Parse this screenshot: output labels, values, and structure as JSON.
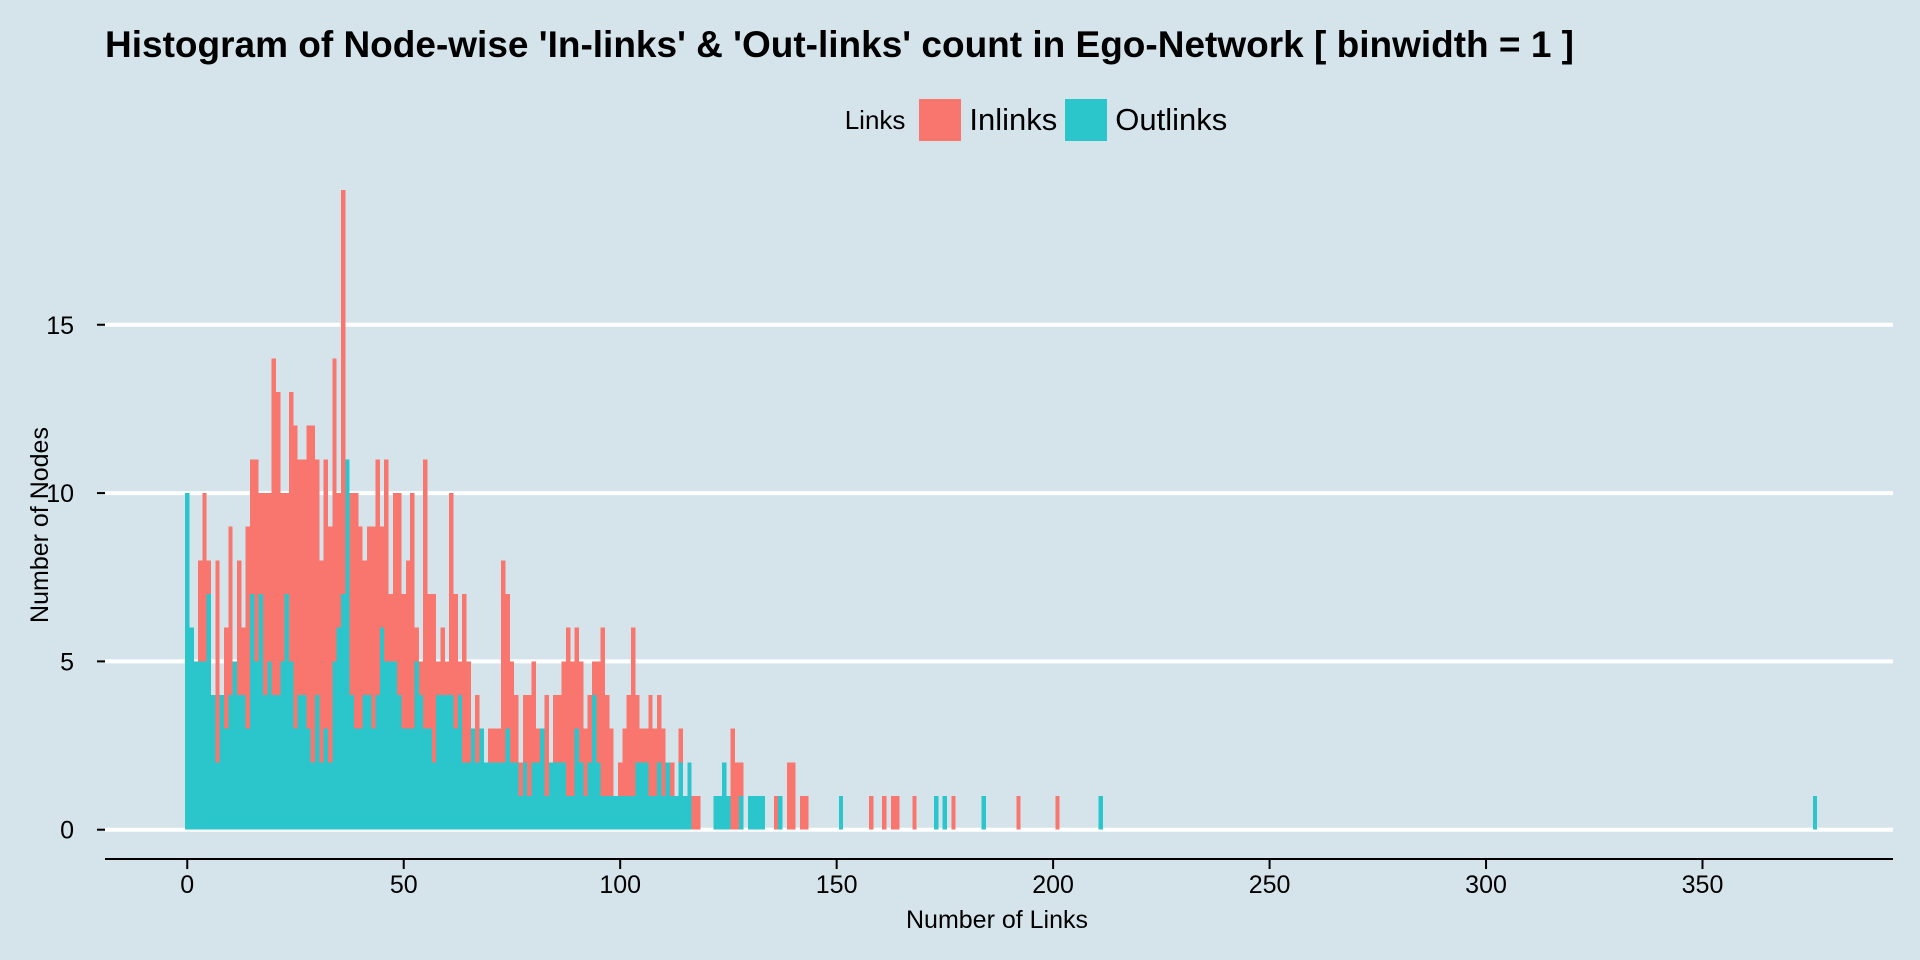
{
  "chart_data": {
    "type": "bar",
    "title": "Histogram of Node-wise 'In-links' & 'Out-links' count in Ego-Network [ binwidth = 1 ]",
    "xlabel": "Number of Links",
    "ylabel": "Number of Nodes",
    "xlim": [
      -19,
      394
    ],
    "ylim": [
      -0.9,
      19.3
    ],
    "x_ticks": [
      0,
      50,
      100,
      150,
      200,
      250,
      300,
      350
    ],
    "y_ticks": [
      0,
      5,
      10,
      15
    ],
    "grid": "horizontal",
    "legend": {
      "title": "Links",
      "placement": "top-center"
    },
    "binwidth": 1,
    "series": [
      {
        "name": "Inlinks",
        "color": "#f8766d",
        "points": [
          [
            3,
            8
          ],
          [
            4,
            10
          ],
          [
            5,
            8
          ],
          [
            7,
            8
          ],
          [
            9,
            6
          ],
          [
            10,
            9
          ],
          [
            12,
            8
          ],
          [
            13,
            6
          ],
          [
            14,
            9
          ],
          [
            15,
            11
          ],
          [
            16,
            11
          ],
          [
            17,
            10
          ],
          [
            18,
            10
          ],
          [
            19,
            10
          ],
          [
            20,
            14
          ],
          [
            21,
            13
          ],
          [
            22,
            10
          ],
          [
            23,
            10
          ],
          [
            24,
            13
          ],
          [
            25,
            12
          ],
          [
            26,
            11
          ],
          [
            27,
            11
          ],
          [
            28,
            12
          ],
          [
            29,
            12
          ],
          [
            30,
            11
          ],
          [
            31,
            8
          ],
          [
            32,
            11
          ],
          [
            33,
            9
          ],
          [
            34,
            14
          ],
          [
            35,
            10
          ],
          [
            36,
            19
          ],
          [
            37,
            11
          ],
          [
            38,
            10
          ],
          [
            39,
            10
          ],
          [
            40,
            9
          ],
          [
            41,
            8
          ],
          [
            42,
            9
          ],
          [
            43,
            9
          ],
          [
            44,
            11
          ],
          [
            45,
            9
          ],
          [
            46,
            11
          ],
          [
            47,
            7
          ],
          [
            48,
            10
          ],
          [
            49,
            10
          ],
          [
            50,
            7
          ],
          [
            51,
            8
          ],
          [
            52,
            10
          ],
          [
            53,
            6
          ],
          [
            54,
            5
          ],
          [
            55,
            11
          ],
          [
            56,
            7
          ],
          [
            57,
            7
          ],
          [
            58,
            5
          ],
          [
            59,
            6
          ],
          [
            60,
            5
          ],
          [
            61,
            10
          ],
          [
            62,
            7
          ],
          [
            63,
            5
          ],
          [
            64,
            7
          ],
          [
            65,
            5
          ],
          [
            67,
            4
          ],
          [
            68,
            2
          ],
          [
            70,
            3
          ],
          [
            71,
            3
          ],
          [
            72,
            3
          ],
          [
            73,
            8
          ],
          [
            74,
            7
          ],
          [
            75,
            5
          ],
          [
            76,
            4
          ],
          [
            77,
            2
          ],
          [
            78,
            4
          ],
          [
            79,
            4
          ],
          [
            80,
            5
          ],
          [
            81,
            3
          ],
          [
            82,
            2
          ],
          [
            83,
            4
          ],
          [
            84,
            2
          ],
          [
            85,
            4
          ],
          [
            86,
            4
          ],
          [
            87,
            5
          ],
          [
            88,
            6
          ],
          [
            89,
            5
          ],
          [
            90,
            6
          ],
          [
            91,
            5
          ],
          [
            92,
            3
          ],
          [
            93,
            4
          ],
          [
            94,
            5
          ],
          [
            95,
            5
          ],
          [
            96,
            6
          ],
          [
            97,
            4
          ],
          [
            98,
            3
          ],
          [
            100,
            2
          ],
          [
            101,
            3
          ],
          [
            102,
            4
          ],
          [
            103,
            6
          ],
          [
            104,
            4
          ],
          [
            105,
            3
          ],
          [
            106,
            3
          ],
          [
            107,
            4
          ],
          [
            108,
            3
          ],
          [
            109,
            4
          ],
          [
            110,
            3
          ],
          [
            111,
            2
          ],
          [
            112,
            2
          ],
          [
            114,
            3
          ],
          [
            115,
            1
          ],
          [
            116,
            1
          ],
          [
            117,
            1
          ],
          [
            118,
            1
          ],
          [
            122,
            1
          ],
          [
            124,
            1
          ],
          [
            126,
            3
          ],
          [
            127,
            2
          ],
          [
            128,
            2
          ],
          [
            136,
            1
          ],
          [
            139,
            2
          ],
          [
            140,
            2
          ],
          [
            142,
            1
          ],
          [
            143,
            1
          ],
          [
            158,
            1
          ],
          [
            161,
            1
          ],
          [
            163,
            1
          ],
          [
            164,
            1
          ],
          [
            168,
            1
          ],
          [
            177,
            1
          ],
          [
            192,
            1
          ],
          [
            201,
            1
          ]
        ]
      },
      {
        "name": "Outlinks",
        "color": "#2bc6cb",
        "points": [
          [
            0,
            10
          ],
          [
            1,
            6
          ],
          [
            2,
            5
          ],
          [
            3,
            5
          ],
          [
            4,
            5
          ],
          [
            5,
            7
          ],
          [
            6,
            4
          ],
          [
            7,
            2
          ],
          [
            8,
            4
          ],
          [
            9,
            3
          ],
          [
            10,
            4
          ],
          [
            11,
            5
          ],
          [
            12,
            4
          ],
          [
            13,
            4
          ],
          [
            14,
            3
          ],
          [
            15,
            7
          ],
          [
            16,
            5
          ],
          [
            17,
            7
          ],
          [
            18,
            4
          ],
          [
            19,
            5
          ],
          [
            20,
            4
          ],
          [
            21,
            4
          ],
          [
            22,
            5
          ],
          [
            23,
            7
          ],
          [
            24,
            5
          ],
          [
            25,
            3
          ],
          [
            26,
            4
          ],
          [
            27,
            4
          ],
          [
            28,
            3
          ],
          [
            29,
            2
          ],
          [
            30,
            4
          ],
          [
            31,
            2
          ],
          [
            32,
            3
          ],
          [
            33,
            2
          ],
          [
            34,
            5
          ],
          [
            35,
            6
          ],
          [
            36,
            7
          ],
          [
            37,
            11
          ],
          [
            38,
            4
          ],
          [
            39,
            3
          ],
          [
            40,
            3
          ],
          [
            41,
            4
          ],
          [
            42,
            4
          ],
          [
            43,
            3
          ],
          [
            44,
            4
          ],
          [
            45,
            6
          ],
          [
            46,
            5
          ],
          [
            47,
            5
          ],
          [
            48,
            5
          ],
          [
            49,
            4
          ],
          [
            50,
            3
          ],
          [
            51,
            3
          ],
          [
            52,
            3
          ],
          [
            53,
            5
          ],
          [
            54,
            4
          ],
          [
            55,
            3
          ],
          [
            56,
            3
          ],
          [
            57,
            2
          ],
          [
            58,
            4
          ],
          [
            59,
            4
          ],
          [
            60,
            4
          ],
          [
            61,
            4
          ],
          [
            62,
            3
          ],
          [
            63,
            4
          ],
          [
            64,
            2
          ],
          [
            65,
            2
          ],
          [
            66,
            3
          ],
          [
            67,
            2
          ],
          [
            68,
            3
          ],
          [
            69,
            2
          ],
          [
            70,
            2
          ],
          [
            71,
            2
          ],
          [
            72,
            2
          ],
          [
            73,
            2
          ],
          [
            74,
            3
          ],
          [
            75,
            2
          ],
          [
            76,
            2
          ],
          [
            77,
            1
          ],
          [
            78,
            2
          ],
          [
            79,
            1
          ],
          [
            80,
            2
          ],
          [
            81,
            2
          ],
          [
            82,
            3
          ],
          [
            83,
            1
          ],
          [
            84,
            2
          ],
          [
            85,
            2
          ],
          [
            86,
            2
          ],
          [
            87,
            2
          ],
          [
            88,
            1
          ],
          [
            89,
            1
          ],
          [
            90,
            3
          ],
          [
            91,
            2
          ],
          [
            92,
            1
          ],
          [
            93,
            2
          ],
          [
            94,
            4
          ],
          [
            95,
            2
          ],
          [
            96,
            1
          ],
          [
            97,
            1
          ],
          [
            98,
            1
          ],
          [
            99,
            1
          ],
          [
            100,
            1
          ],
          [
            101,
            1
          ],
          [
            102,
            1
          ],
          [
            103,
            1
          ],
          [
            104,
            2
          ],
          [
            105,
            2
          ],
          [
            106,
            2
          ],
          [
            107,
            1
          ],
          [
            108,
            1
          ],
          [
            109,
            2
          ],
          [
            110,
            1
          ],
          [
            111,
            2
          ],
          [
            112,
            1
          ],
          [
            113,
            1
          ],
          [
            114,
            2
          ],
          [
            115,
            1
          ],
          [
            116,
            2
          ],
          [
            122,
            1
          ],
          [
            123,
            1
          ],
          [
            124,
            2
          ],
          [
            125,
            1
          ],
          [
            128,
            1
          ],
          [
            130,
            1
          ],
          [
            131,
            1
          ],
          [
            132,
            1
          ],
          [
            133,
            1
          ],
          [
            137,
            1
          ],
          [
            151,
            1
          ],
          [
            173,
            1
          ],
          [
            175,
            1
          ],
          [
            184,
            1
          ],
          [
            211,
            1
          ],
          [
            376,
            1
          ]
        ]
      }
    ]
  }
}
